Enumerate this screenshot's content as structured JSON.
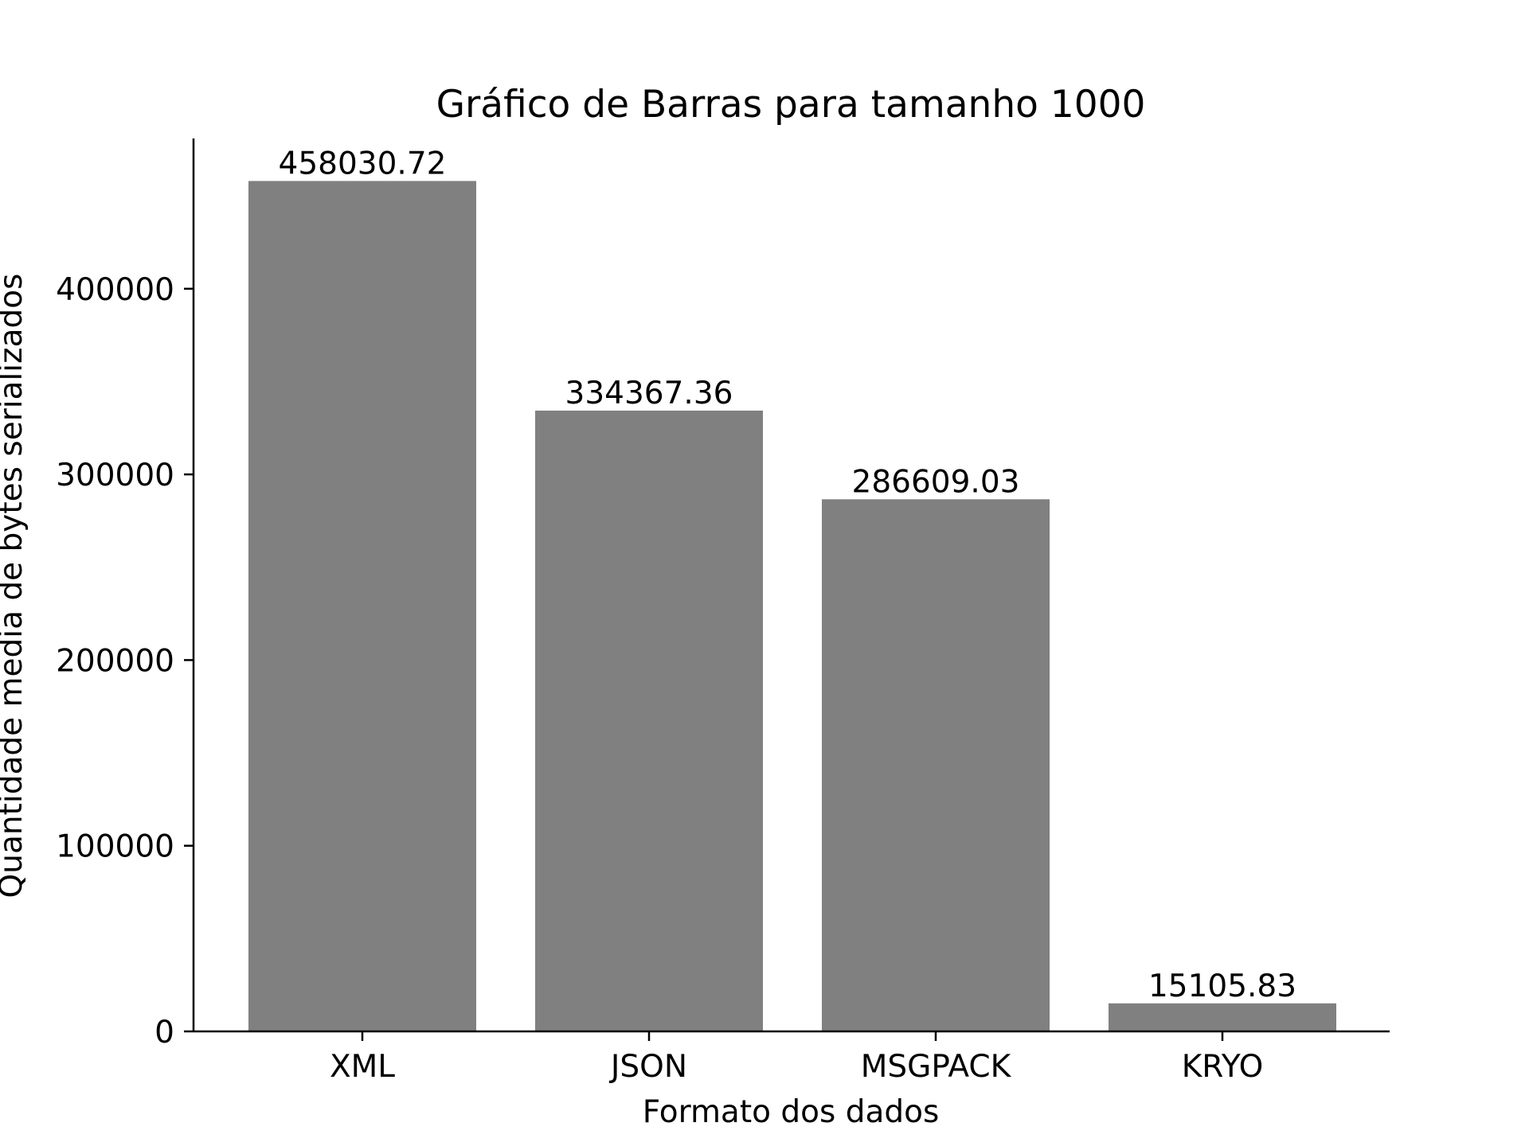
{
  "chart_data": {
    "type": "bar",
    "title": "Gráfico de Barras para tamanho 1000",
    "xlabel": "Formato dos dados",
    "ylabel": "Quantidade media de bytes serializados",
    "categories": [
      "XML",
      "JSON",
      "MSGPACK",
      "KRYO"
    ],
    "values": [
      458030.72,
      334367.36,
      286609.03,
      15105.83
    ],
    "value_labels": [
      "458030.72",
      "334367.36",
      "286609.03",
      "15105.83"
    ],
    "ylim": [
      0,
      480932
    ],
    "yticks": [
      0,
      100000,
      200000,
      300000,
      400000
    ],
    "ytick_labels": [
      "0",
      "100000",
      "200000",
      "300000",
      "400000"
    ],
    "bar_color": "#808080",
    "grid": false,
    "legend": "none",
    "spines": [
      "left",
      "bottom"
    ]
  }
}
